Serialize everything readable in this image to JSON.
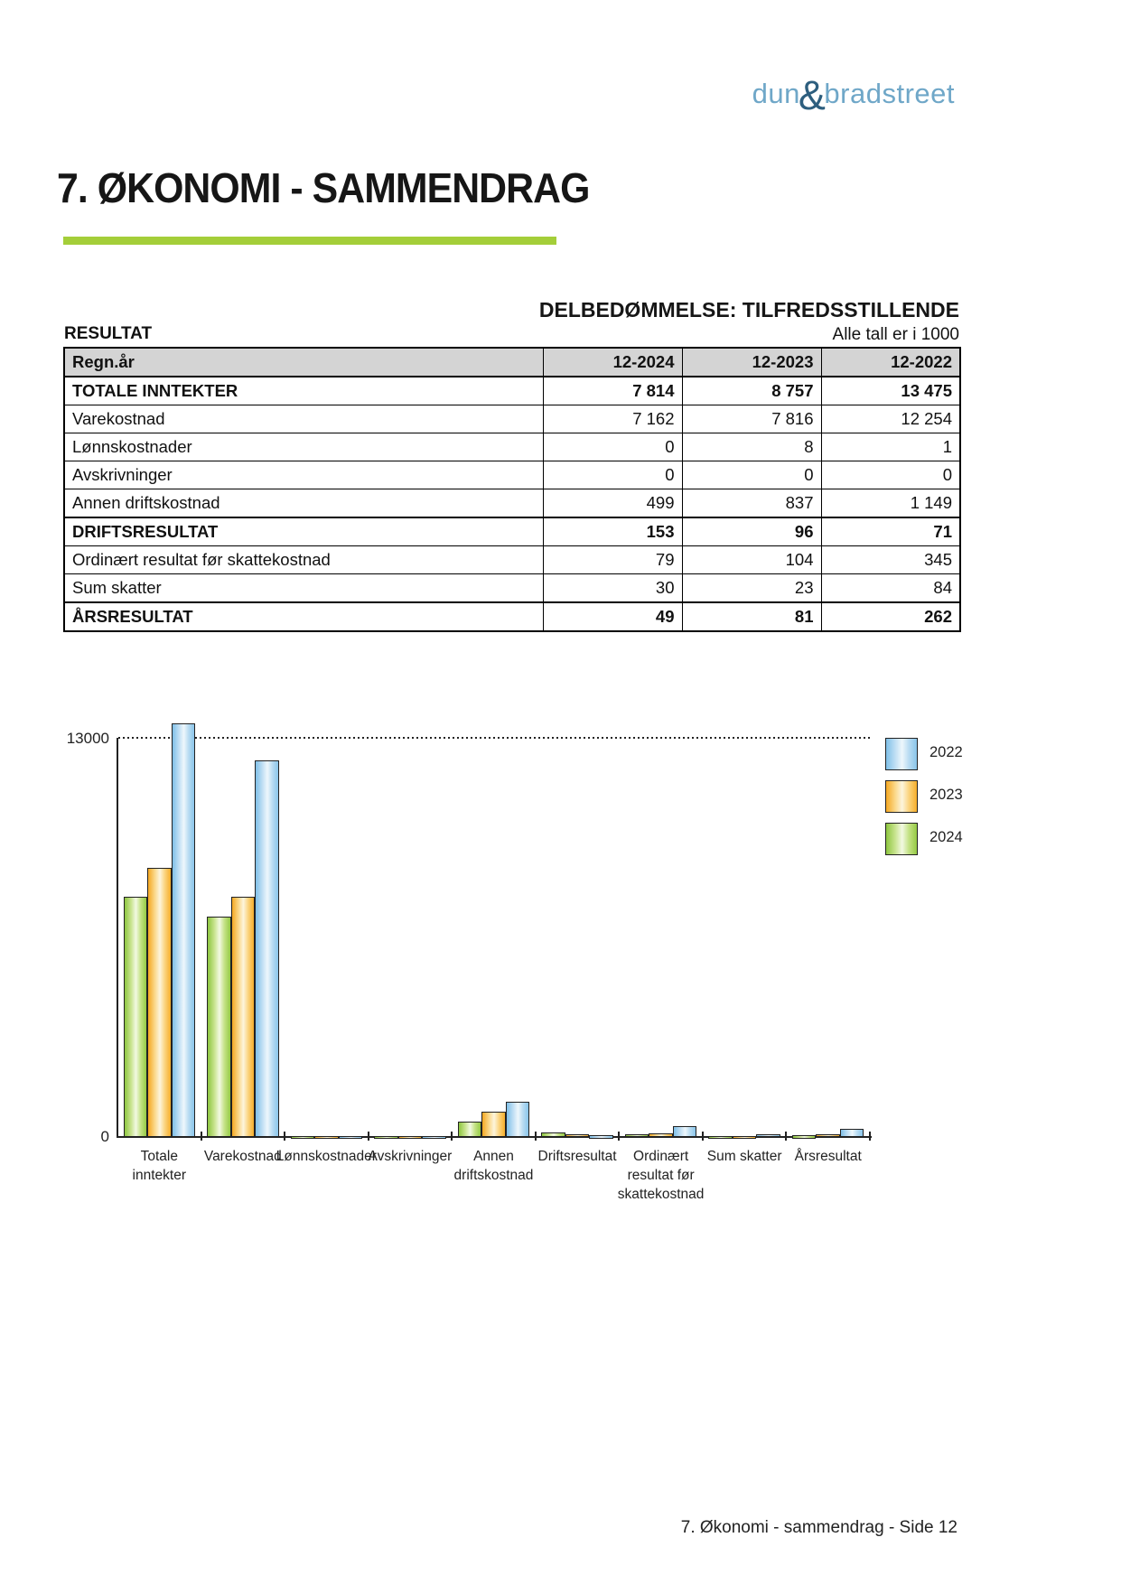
{
  "logo": {
    "part1": "dun",
    "amp": "&",
    "part2": "bradstreet"
  },
  "page": {
    "title": "7. ØKONOMI - SAMMENDRAG",
    "assessment": "DELBEDØMMELSE: TILFREDSSTILLENDE",
    "section_label": "RESULTAT",
    "units_note": "Alle tall er i 1000",
    "footer": "7. Økonomi - sammendrag - Side 12"
  },
  "colors": {
    "accent_green_rule": "#a4ce39",
    "logo_blue": "#6fa7c8",
    "logo_dark_blue": "#2d5e7e",
    "table_header_bg": "#d4d4d4",
    "series_2024": "#8dc63f",
    "series_2023": "#f5a822",
    "series_2022": "#7fc0e8"
  },
  "table": {
    "header": [
      "Regn.år",
      "12-2024",
      "12-2023",
      "12-2022"
    ],
    "rows": [
      {
        "label": "TOTALE INNTEKTER",
        "values": [
          "7 814",
          "8 757",
          "13 475"
        ],
        "emphasis": true
      },
      {
        "label": "Varekostnad",
        "values": [
          "7 162",
          "7 816",
          "12 254"
        ],
        "emphasis": false
      },
      {
        "label": "Lønnskostnader",
        "values": [
          "0",
          "8",
          "1"
        ],
        "emphasis": false
      },
      {
        "label": "Avskrivninger",
        "values": [
          "0",
          "0",
          "0"
        ],
        "emphasis": false
      },
      {
        "label": "Annen driftskostnad",
        "values": [
          "499",
          "837",
          "1 149"
        ],
        "emphasis": false
      },
      {
        "label": "DRIFTSRESULTAT",
        "values": [
          "153",
          "96",
          "71"
        ],
        "emphasis": true
      },
      {
        "label": "Ordinært resultat før skattekostnad",
        "values": [
          "79",
          "104",
          "345"
        ],
        "emphasis": false
      },
      {
        "label": "Sum skatter",
        "values": [
          "30",
          "23",
          "84"
        ],
        "emphasis": false
      },
      {
        "label": "ÅRSRESULTAT",
        "values": [
          "49",
          "81",
          "262"
        ],
        "emphasis": true
      }
    ]
  },
  "chart_data": {
    "type": "bar",
    "title": "",
    "xlabel": "",
    "ylabel": "",
    "categories": [
      "Totale inntekter",
      "Varekostnad",
      "Lønnskostnader",
      "Avskrivninger",
      "Annen driftskostnad",
      "Driftsresultat",
      "Ordinært resultat før skattekostnad",
      "Sum skatter",
      "Årsresultat"
    ],
    "category_label_lines": [
      [
        "Totale",
        "inntekter"
      ],
      [
        "Varekostnad"
      ],
      [
        "Lønnskostnader"
      ],
      [
        "Avskrivninger"
      ],
      [
        "Annen",
        "driftskostnad"
      ],
      [
        "Driftsresultat"
      ],
      [
        "Ordinært",
        "resultat før",
        "skattekostnad"
      ],
      [
        "Sum skatter"
      ],
      [
        "Årsresultat"
      ]
    ],
    "series": [
      {
        "name": "2024",
        "color": "#8dc63f",
        "values": [
          7814,
          7162,
          0,
          0,
          499,
          153,
          79,
          30,
          49
        ]
      },
      {
        "name": "2023",
        "color": "#f5a822",
        "values": [
          8757,
          7816,
          8,
          0,
          837,
          96,
          104,
          23,
          81
        ]
      },
      {
        "name": "2022",
        "color": "#7fc0e8",
        "values": [
          13475,
          12254,
          1,
          0,
          1149,
          71,
          345,
          84,
          262
        ]
      }
    ],
    "bar_order_in_group": [
      "2024",
      "2023",
      "2022"
    ],
    "legend": [
      {
        "label": "2022",
        "color": "#7fc0e8"
      },
      {
        "label": "2023",
        "color": "#f5a822"
      },
      {
        "label": "2024",
        "color": "#8dc63f"
      }
    ],
    "legend_position": "right",
    "ylim": [
      0,
      13000
    ],
    "yticks": [
      0,
      13000
    ],
    "grid": "single dotted gridline at y=13000"
  }
}
